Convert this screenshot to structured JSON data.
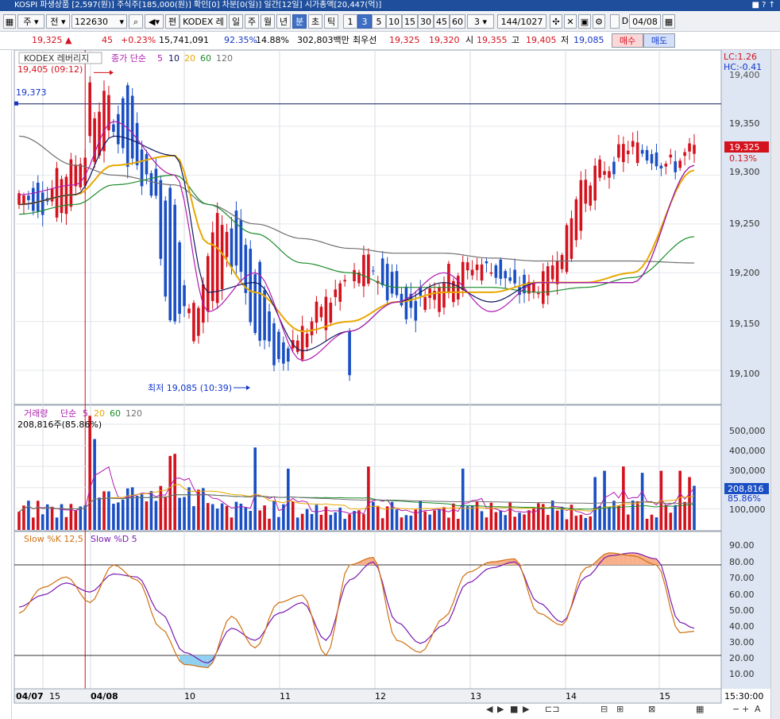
{
  "window": {
    "title": "KOSPI 파생상품 [2,597(원)] 주식주[185,000(원)] 확인[0] 차분[0(일)] 일간[12일] 시가총액[20,447(억)]",
    "controls": "■ ? ↑"
  },
  "toolbar": {
    "market": "주",
    "prev": "전",
    "code": "122630",
    "name": "KODEX 레버",
    "edit_label": "편",
    "periods": [
      "일",
      "주",
      "월",
      "년",
      "분",
      "초",
      "틱"
    ],
    "intervals": [
      "1",
      "3",
      "5",
      "10",
      "15",
      "30",
      "45",
      "60"
    ],
    "selected_interval": "3",
    "selected_period": "분",
    "count_value": "3",
    "range": "144",
    "total": "/1027",
    "d_label": "D",
    "date": "04/08"
  },
  "quote": {
    "price": "19,325",
    "change": "45",
    "change_pct": "+0.23%",
    "volume": "15,741,091",
    "vol_ratio": "92.35%",
    "turnover": "14.88%",
    "amount": "302,803백만",
    "best_label": "최우선",
    "ask": "19,325",
    "bid": "19,320",
    "open_label": "시",
    "open": "19,355",
    "high_label": "고",
    "high": "19,405",
    "low_label": "저",
    "low": "19,085",
    "buy_label": "매수",
    "sell_label": "매도"
  },
  "colors": {
    "up": "#d4121e",
    "down": "#1a4fc4",
    "ma5": "#b01ab0",
    "ma10": "#101860",
    "ma20": "#e8a800",
    "ma60": "#1c8c2c",
    "ma120": "#707070",
    "axis_bg": "#dde6f2"
  },
  "price_panel": {
    "legend_name": "KODEX 레버리지",
    "legend_ma_prefix": "종가 단순",
    "ma_periods": [
      "5",
      "10",
      "20",
      "60",
      "120"
    ],
    "lc_label": "LC:1.26",
    "hc_label": "HC:-0.41",
    "top_clip_label": "19,400",
    "high_marker": "19,405 (09:12)",
    "low_marker": "최저 19,085 (10:39)",
    "ref_line_label": "19,373",
    "current_price": "19,325",
    "current_pct": "0.13%",
    "yticks": [
      "19,350",
      "19,300",
      "19,250",
      "19,200",
      "19,150",
      "19,100"
    ]
  },
  "volume_panel": {
    "legend_name": "거래량",
    "legend_ma_prefix": "단순",
    "ma_periods": [
      "5",
      "20",
      "60",
      "120"
    ],
    "current_text": "208,816주(85.86%)",
    "current_value": "208,816",
    "current_pct": "85.86%",
    "yticks": [
      "500,000",
      "400,000",
      "300,000",
      "200,000",
      "100,000"
    ]
  },
  "stoch_panel": {
    "label_k": "Slow %K 12,5",
    "label_d": "Slow %D 5",
    "yticks": [
      "90.00",
      "80.00",
      "70.00",
      "60.00",
      "50.00",
      "40.00",
      "30.00",
      "20.00",
      "10.00"
    ]
  },
  "xaxis": {
    "labels": [
      "04/07",
      "15",
      "04/08",
      "10",
      "11",
      "12",
      "13",
      "14",
      "15"
    ],
    "end_time": "15:30:00"
  },
  "chart_data": [
    {
      "type": "candlestick",
      "ylim": [
        19070,
        19420
      ],
      "anchors_open": [
        19270,
        19290,
        19260,
        19300,
        19330,
        19390,
        19310,
        19280,
        19140,
        19170,
        19260,
        19200,
        19130,
        19120,
        19150,
        19180,
        19190,
        19210,
        19180,
        19170,
        19180,
        19200,
        19210,
        19190,
        19180,
        19200,
        19260,
        19300,
        19320,
        19330,
        19310,
        19320
      ],
      "anchors_close": [
        19280,
        19270,
        19300,
        19320,
        19380,
        19310,
        19290,
        19160,
        19160,
        19250,
        19210,
        19130,
        19110,
        19140,
        19170,
        19190,
        19210,
        19180,
        19160,
        19190,
        19200,
        19210,
        19200,
        19180,
        19190,
        19230,
        19300,
        19310,
        19330,
        19320,
        19310,
        19325
      ],
      "ma_anchor_idx": [
        0,
        12,
        20,
        33,
        40,
        50,
        60,
        70,
        80,
        90,
        100,
        110,
        120,
        130,
        143
      ],
      "ma5": [
        19280,
        19290,
        19355,
        19300,
        19160,
        19200,
        19110,
        19140,
        19170,
        19200,
        19160,
        19190,
        19190,
        19190,
        19310
      ],
      "ma10": [
        19270,
        19280,
        19340,
        19320,
        19180,
        19190,
        19120,
        19140,
        19170,
        19190,
        19170,
        19190,
        19190,
        19190,
        19310
      ],
      "ma20": [
        19270,
        19280,
        19310,
        19320,
        19230,
        19180,
        19140,
        19150,
        19170,
        19180,
        19180,
        19190,
        19190,
        19200,
        19305
      ],
      "ma60": [
        19260,
        19270,
        19290,
        19300,
        19270,
        19240,
        19210,
        19200,
        19185,
        19185,
        19185,
        19180,
        19185,
        19195,
        19237
      ],
      "ma120": [
        19340,
        19310,
        19300,
        19290,
        19270,
        19250,
        19235,
        19225,
        19220,
        19220,
        19215,
        19212,
        19212,
        19212,
        19210
      ]
    },
    {
      "type": "bar",
      "ylim": [
        0,
        560000
      ],
      "spikes": {
        "15": 540000,
        "16": 430000,
        "32": 350000,
        "33": 360000,
        "50": 390000,
        "57": 290000,
        "74": 300000,
        "94": 290000,
        "122": 250000,
        "124": 280000,
        "128": 300000,
        "132": 270000,
        "136": 280000,
        "140": 280000,
        "142": 250000,
        "143": 208816
      }
    },
    {
      "type": "line",
      "ylim": [
        0,
        100
      ],
      "anchors_idx": [
        0,
        5,
        10,
        15,
        20,
        25,
        30,
        35,
        40,
        45,
        50,
        55,
        60,
        65,
        70,
        75,
        80,
        85,
        90,
        95,
        100,
        105,
        110,
        115,
        120,
        125,
        130,
        135,
        140,
        143
      ],
      "slow_k": [
        48,
        65,
        72,
        55,
        80,
        70,
        38,
        14,
        12,
        46,
        25,
        55,
        60,
        20,
        80,
        85,
        30,
        22,
        45,
        75,
        82,
        84,
        48,
        40,
        78,
        88,
        86,
        80,
        35,
        36
      ],
      "slow_d": [
        52,
        60,
        68,
        62,
        74,
        72,
        48,
        22,
        15,
        38,
        30,
        48,
        55,
        30,
        70,
        82,
        42,
        28,
        40,
        68,
        78,
        82,
        55,
        42,
        72,
        86,
        88,
        84,
        42,
        38
      ]
    }
  ]
}
